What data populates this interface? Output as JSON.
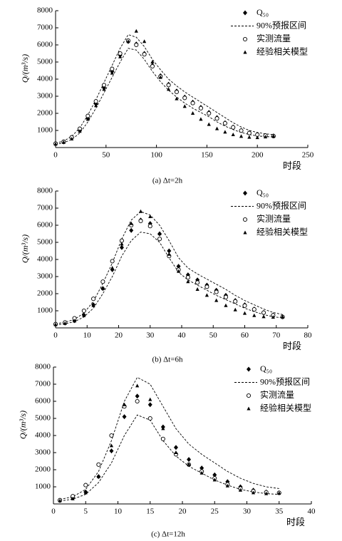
{
  "chart_data": [
    {
      "type": "scatter",
      "caption": "(a) Δt=2h",
      "x_label": "时段",
      "y_label": "Q/(m³/s)",
      "x": [
        0,
        8,
        16,
        24,
        32,
        40,
        48,
        56,
        64,
        72,
        80,
        88,
        96,
        104,
        112,
        120,
        128,
        136,
        144,
        152,
        160,
        168,
        176,
        184,
        192,
        200,
        208,
        216
      ],
      "xlim": [
        0,
        250
      ],
      "xticks": [
        0,
        50,
        100,
        150,
        200,
        250
      ],
      "ylim": [
        0,
        8000
      ],
      "yticks": [
        1000,
        2000,
        3000,
        4000,
        5000,
        6000,
        7000,
        8000
      ],
      "series": [
        {
          "name": "Q₅₀",
          "marker": "diamond",
          "color": "#000000",
          "values": [
            220,
            330,
            560,
            1000,
            1700,
            2550,
            3500,
            4450,
            5400,
            6200,
            6050,
            5500,
            4800,
            4200,
            3700,
            3300,
            2950,
            2650,
            2350,
            2050,
            1750,
            1450,
            1200,
            1000,
            860,
            760,
            700,
            680
          ]
        },
        {
          "name": "90%预报区间",
          "marker": "band",
          "color": "#000000",
          "upper": [
            260,
            380,
            650,
            1150,
            1900,
            2800,
            3800,
            4800,
            5800,
            6600,
            6450,
            5900,
            5150,
            4550,
            4000,
            3600,
            3250,
            2950,
            2650,
            2350,
            2050,
            1750,
            1450,
            1200,
            1000,
            880,
            800,
            760
          ],
          "lower": [
            180,
            280,
            470,
            850,
            1500,
            2300,
            3200,
            4100,
            5000,
            5800,
            5700,
            5150,
            4450,
            3850,
            3350,
            2950,
            2600,
            2300,
            2050,
            1800,
            1500,
            1250,
            1050,
            880,
            760,
            680,
            640,
            620
          ]
        },
        {
          "name": "实测流量",
          "marker": "circle",
          "color": "#000000",
          "values": [
            230,
            340,
            600,
            1100,
            1850,
            2700,
            3650,
            4600,
            5500,
            6250,
            6000,
            5450,
            4750,
            4150,
            3650,
            3250,
            2900,
            2600,
            2300,
            2000,
            1700,
            1420,
            1180,
            990,
            850,
            750,
            700,
            670
          ]
        },
        {
          "name": "经验相关模型",
          "marker": "triangle",
          "color": "#000000",
          "values": [
            200,
            300,
            500,
            950,
            1650,
            2450,
            3400,
            4350,
            5300,
            6200,
            6800,
            6200,
            5000,
            4100,
            3400,
            2850,
            2400,
            2000,
            1650,
            1350,
            1100,
            900,
            750,
            650,
            600,
            580,
            620,
            660
          ]
        }
      ]
    },
    {
      "type": "scatter",
      "caption": "(b) Δt=6h",
      "x_label": "时段",
      "y_label": "Q/(m³/s)",
      "x": [
        0,
        3,
        6,
        9,
        12,
        15,
        18,
        21,
        24,
        27,
        30,
        33,
        36,
        39,
        42,
        45,
        48,
        51,
        54,
        57,
        60,
        63,
        66,
        69,
        72
      ],
      "xlim": [
        0,
        80
      ],
      "xticks": [
        0,
        10,
        20,
        30,
        40,
        50,
        60,
        70,
        80
      ],
      "ylim": [
        0,
        8000
      ],
      "yticks": [
        1000,
        2000,
        3000,
        4000,
        5000,
        6000,
        7000,
        8000
      ],
      "series": [
        {
          "name": "Q₅₀",
          "marker": "diamond",
          "color": "#000000",
          "values": [
            200,
            280,
            420,
            750,
            1350,
            2300,
            3400,
            4700,
            5700,
            6300,
            6100,
            5500,
            4500,
            3600,
            3100,
            2800,
            2500,
            2200,
            1900,
            1600,
            1350,
            1100,
            900,
            750,
            650
          ]
        },
        {
          "name": "90%预报区间",
          "marker": "band",
          "color": "#000000",
          "upper": [
            240,
            330,
            500,
            870,
            1550,
            2600,
            3800,
            5200,
            6300,
            6800,
            6600,
            6000,
            5100,
            4100,
            3500,
            3150,
            2850,
            2550,
            2250,
            1900,
            1600,
            1350,
            1100,
            900,
            780
          ],
          "lower": [
            170,
            240,
            360,
            640,
            1150,
            2000,
            3000,
            4200,
            5100,
            5600,
            5500,
            5000,
            4100,
            3250,
            2800,
            2500,
            2200,
            1900,
            1650,
            1400,
            1150,
            950,
            780,
            650,
            580
          ]
        },
        {
          "name": "实测流量",
          "marker": "circle",
          "color": "#000000",
          "values": [
            220,
            320,
            560,
            1000,
            1700,
            2700,
            3900,
            5100,
            6000,
            6250,
            5950,
            5200,
            4200,
            3400,
            2950,
            2650,
            2400,
            2100,
            1800,
            1550,
            1300,
            1080,
            890,
            740,
            640
          ]
        },
        {
          "name": "经验相关模型",
          "marker": "triangle",
          "color": "#000000",
          "values": [
            190,
            260,
            400,
            720,
            1300,
            2300,
            3500,
            4900,
            6100,
            6800,
            6500,
            5500,
            4300,
            3300,
            2700,
            2250,
            1900,
            1600,
            1300,
            1050,
            850,
            720,
            650,
            620,
            640
          ]
        }
      ]
    },
    {
      "type": "scatter",
      "caption": "(c) Δt=12h",
      "x_label": "时段",
      "y_label": "Q/(m³/s)",
      "x": [
        1,
        3,
        5,
        7,
        9,
        11,
        13,
        15,
        17,
        19,
        21,
        23,
        25,
        27,
        29,
        31,
        33,
        35
      ],
      "xlim": [
        0,
        40
      ],
      "xticks": [
        0,
        5,
        10,
        15,
        20,
        25,
        30,
        35,
        40
      ],
      "ylim": [
        0,
        8000
      ],
      "yticks": [
        1000,
        2000,
        3000,
        4000,
        5000,
        6000,
        7000,
        8000
      ],
      "series": [
        {
          "name": "Q₅₀",
          "marker": "diamond",
          "color": "#000000",
          "values": [
            200,
            350,
            700,
            1600,
            3100,
            5100,
            6300,
            5800,
            4500,
            3300,
            2600,
            2100,
            1700,
            1300,
            1000,
            800,
            700,
            650
          ]
        },
        {
          "name": "90%预报区间",
          "marker": "band",
          "color": "#000000",
          "upper": [
            260,
            420,
            850,
            1900,
            3700,
            6000,
            7400,
            7000,
            5700,
            4400,
            3500,
            2900,
            2400,
            1900,
            1500,
            1200,
            1000,
            900
          ],
          "lower": [
            170,
            280,
            560,
            1250,
            2400,
            4000,
            5200,
            4900,
            3700,
            2800,
            2200,
            1800,
            1400,
            1100,
            850,
            700,
            600,
            560
          ]
        },
        {
          "name": "实测流量",
          "marker": "circle",
          "color": "#000000",
          "values": [
            220,
            450,
            1100,
            2300,
            4000,
            5700,
            6000,
            5000,
            3800,
            2900,
            2300,
            1900,
            1500,
            1150,
            900,
            750,
            680,
            650
          ]
        },
        {
          "name": "经验相关模型",
          "marker": "triangle",
          "color": "#000000",
          "values": [
            180,
            300,
            650,
            1600,
            3400,
            5800,
            6900,
            6100,
            4400,
            3000,
            2300,
            1800,
            1400,
            1050,
            800,
            650,
            600,
            620
          ]
        }
      ]
    }
  ]
}
